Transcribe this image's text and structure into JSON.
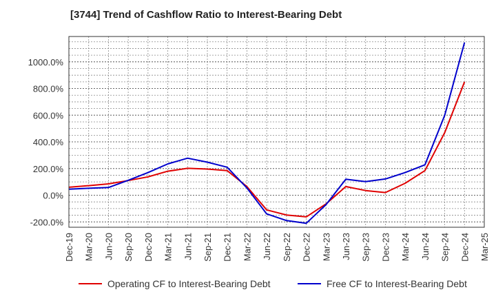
{
  "chart_data": {
    "type": "line",
    "title": "[3744]  Trend of Cashflow Ratio to Interest-Bearing Debt",
    "xlabel": "",
    "ylabel": "",
    "x": [
      "Dec-19",
      "Mar-20",
      "Jun-20",
      "Sep-20",
      "Dec-20",
      "Mar-21",
      "Jun-21",
      "Sep-21",
      "Dec-21",
      "Mar-22",
      "Jun-22",
      "Sep-22",
      "Dec-22",
      "Mar-23",
      "Jun-23",
      "Sep-23",
      "Dec-23",
      "Mar-24",
      "Jun-24",
      "Sep-24",
      "Dec-24",
      "Mar-25"
    ],
    "ylim": [
      -240,
      1190
    ],
    "y_ticks": [
      -200,
      0,
      200,
      400,
      600,
      800,
      1000
    ],
    "y_tick_labels": [
      "-200.0%",
      "0.0%",
      "200.0%",
      "400.0%",
      "600.0%",
      "800.0%",
      "1000.0%"
    ],
    "grid": true,
    "legend_position": "bottom",
    "series": [
      {
        "name": "Operating CF to Interest-Bearing Debt",
        "color": "#e00000",
        "values": [
          60,
          72,
          85,
          110,
          138,
          180,
          202,
          196,
          185,
          65,
          -110,
          -148,
          -162,
          -65,
          65,
          35,
          20,
          90,
          185,
          470,
          850,
          null
        ]
      },
      {
        "name": "Free CF to Interest-Bearing Debt",
        "color": "#0000cc",
        "values": [
          45,
          52,
          58,
          112,
          170,
          235,
          278,
          248,
          210,
          55,
          -140,
          -190,
          -210,
          -70,
          120,
          102,
          122,
          170,
          228,
          600,
          1145,
          null
        ]
      }
    ]
  }
}
